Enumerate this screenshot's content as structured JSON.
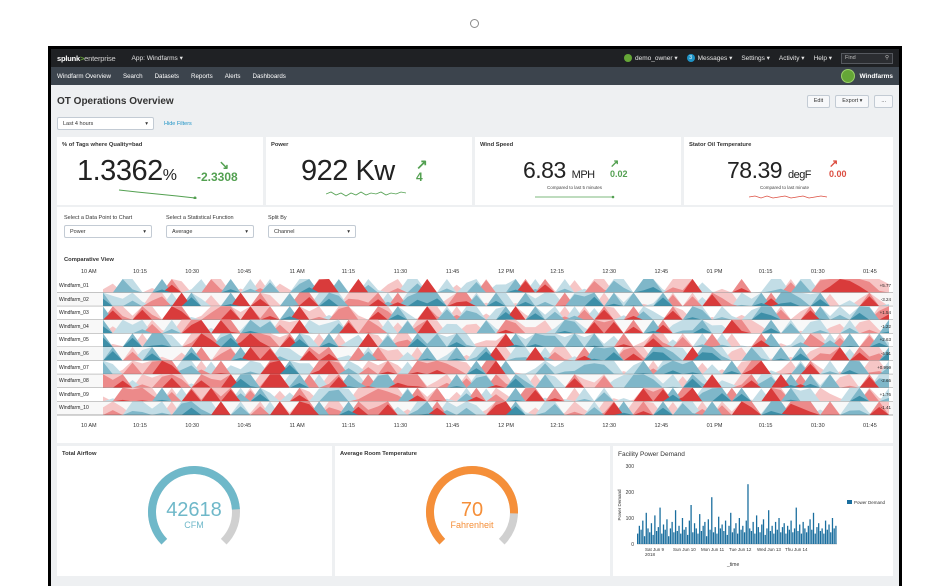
{
  "app": {
    "logo": "splunk>enterprise",
    "app_menu": "App: Windfarms ▾"
  },
  "topbar": {
    "user": "demo_owner ▾",
    "messages": "Messages ▾",
    "messages_count": "3",
    "settings": "Settings ▾",
    "activity": "Activity ▾",
    "help": "Help ▾",
    "find_placeholder": "Find"
  },
  "nav": {
    "items": [
      "Windfarm Overview",
      "Search",
      "Datasets",
      "Reports",
      "Alerts",
      "Dashboards"
    ],
    "app_name": "Windfarms"
  },
  "page": {
    "title": "OT Operations Overview",
    "edit": "Edit",
    "export": "Export ▾",
    "more": "...",
    "time_range": "Last 4 hours",
    "hide_filters": "Hide Filters"
  },
  "kpis": [
    {
      "title": "% of Tags where Quality=bad",
      "value": "1.3362",
      "unit": "%",
      "delta": "-2.3308",
      "arrow": "↘",
      "color": "#53a051",
      "compare": ""
    },
    {
      "title": "Power",
      "value": "922",
      "unit": "Kw",
      "delta": "4",
      "arrow": "↗",
      "color": "#53a051",
      "compare": ""
    },
    {
      "title": "Wind Speed",
      "value": "6.83",
      "unit": "MPH",
      "delta": "0.02",
      "arrow": "↗",
      "color": "#53a051",
      "compare": "Compared to last 5 minutes"
    },
    {
      "title": "Stator Oil Temperature",
      "value": "78.39",
      "unit": "degF",
      "delta": "0.00",
      "arrow": "↗",
      "color": "#dc4e41",
      "compare": "Compared to last minute"
    }
  ],
  "controls": [
    {
      "label": "Select a Data Point to Chart",
      "value": "Power"
    },
    {
      "label": "Select a Statistical Function",
      "value": "Average"
    },
    {
      "label": "Split By",
      "value": "Channel"
    }
  ],
  "comparative": {
    "title": "Comparative View",
    "times": [
      "10 AM",
      "10:15",
      "10:30",
      "10:45",
      "11 AM",
      "11:15",
      "11:30",
      "11:45",
      "12 PM",
      "12:15",
      "12:30",
      "12:45",
      "01 PM",
      "01:15",
      "01:30",
      "01:45"
    ],
    "rows": [
      {
        "name": "Windfarm_01",
        "value": "+5.77"
      },
      {
        "name": "Windfarm_02",
        "value": "-3.24"
      },
      {
        "name": "Windfarm_03",
        "value": "+1.54"
      },
      {
        "name": "Windfarm_04",
        "value": "-1.22"
      },
      {
        "name": "Windfarm_05",
        "value": "+2.63"
      },
      {
        "name": "Windfarm_06",
        "value": "-4.91"
      },
      {
        "name": "Windfarm_07",
        "value": "+0.999"
      },
      {
        "name": "Windfarm_08",
        "value": "-2.65"
      },
      {
        "name": "Windfarm_09",
        "value": "+1.76"
      },
      {
        "name": "Windfarm_10",
        "value": "-1.41"
      }
    ]
  },
  "gauges": [
    {
      "title": "Total Airflow",
      "value": "42618",
      "unit": "CFM",
      "color": "#6fb8c9",
      "fraction": 0.82
    },
    {
      "title": "Average Room Temperature",
      "value": "70",
      "unit": "Fahrenheit",
      "color": "#f58f39",
      "fraction": 0.84
    }
  ],
  "chart_data": {
    "type": "bar",
    "title": "Facility Power Demand",
    "ylabel": "Power Demand",
    "xlabel": "_time",
    "ylim": [
      0,
      300
    ],
    "yticks": [
      "300",
      "200",
      "100",
      "0"
    ],
    "xticks": [
      "Sat Jun 9\n2018",
      "Sun Jun 10",
      "Mon Jun 11",
      "Tue Jun 12",
      "Wed Jun 13",
      "Thu Jun 14"
    ],
    "legend": "Power Demand",
    "legend_position": "right",
    "color": "#1a6e9e",
    "values": [
      40,
      70,
      55,
      90,
      30,
      120,
      60,
      45,
      80,
      35,
      110,
      50,
      65,
      140,
      40,
      75,
      55,
      95,
      30,
      60,
      85,
      45,
      130,
      50,
      70,
      40,
      100,
      55,
      65,
      35,
      90,
      150,
      45,
      80,
      60,
      40,
      115,
      50,
      70,
      85,
      30,
      95,
      55,
      180,
      45,
      65,
      40,
      105,
      60,
      75,
      50,
      90,
      35,
      70,
      120,
      45,
      60,
      80,
      40,
      100,
      55,
      70,
      45,
      90,
      230,
      60,
      50,
      85,
      40,
      110,
      65,
      45,
      75,
      95,
      35,
      60,
      130,
      50,
      70,
      40,
      85,
      55,
      100,
      45,
      65,
      80,
      40,
      70,
      55,
      90,
      45,
      60,
      140,
      50,
      75,
      40,
      85,
      60,
      45,
      70,
      95,
      55,
      120,
      40,
      65,
      80,
      50,
      60,
      40,
      90,
      55,
      75,
      45,
      100,
      60,
      70
    ]
  }
}
